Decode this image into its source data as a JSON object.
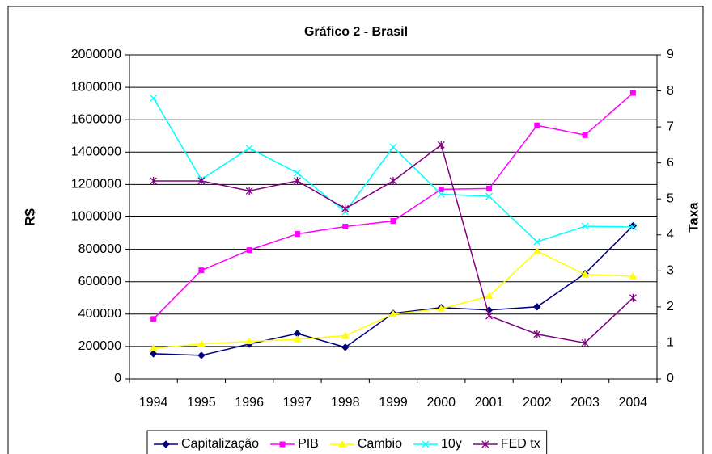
{
  "chart_data": {
    "type": "line",
    "title": "Gráfico 2 - Brasil",
    "y_label": "R$",
    "y2_label": "Taxa",
    "categories": [
      "1994",
      "1995",
      "1996",
      "1997",
      "1998",
      "1999",
      "2000",
      "2001",
      "2002",
      "2003",
      "2004"
    ],
    "ylim": [
      0,
      2000000
    ],
    "yticks": [
      0,
      200000,
      400000,
      600000,
      800000,
      1000000,
      1200000,
      1400000,
      1600000,
      1800000,
      2000000
    ],
    "y2lim": [
      0,
      9
    ],
    "y2ticks": [
      0,
      1,
      2,
      3,
      4,
      5,
      6,
      7,
      8,
      9
    ],
    "grid": true,
    "legend": "bottom",
    "series": [
      {
        "name": "Capitalização",
        "color": "#000080",
        "marker": "diamond",
        "values": [
          155000,
          145000,
          215000,
          280000,
          195000,
          405000,
          440000,
          425000,
          445000,
          650000,
          945000
        ]
      },
      {
        "name": "PIB",
        "color": "#ff00ff",
        "marker": "square",
        "values": [
          370000,
          670000,
          795000,
          895000,
          940000,
          975000,
          1170000,
          1175000,
          1565000,
          1505000,
          1765000
        ]
      },
      {
        "name": "Cambio",
        "color": "#ffff00",
        "marker": "triangle",
        "axis": "y2",
        "values": [
          0.85,
          0.97,
          1.04,
          1.1,
          1.2,
          1.8,
          1.95,
          2.3,
          3.55,
          2.9,
          2.85
        ]
      },
      {
        "name": "10y",
        "color": "#00ffff",
        "marker": "x",
        "axis": "y2",
        "values": [
          7.8,
          5.54,
          6.41,
          5.72,
          4.64,
          6.44,
          5.13,
          5.07,
          3.81,
          4.24,
          4.22
        ]
      },
      {
        "name": "FED tx",
        "color": "#800080",
        "marker": "star",
        "axis": "y2",
        "values": [
          5.5,
          5.5,
          5.22,
          5.5,
          4.73,
          5.5,
          6.5,
          1.75,
          1.24,
          1.0,
          2.25
        ]
      }
    ]
  }
}
